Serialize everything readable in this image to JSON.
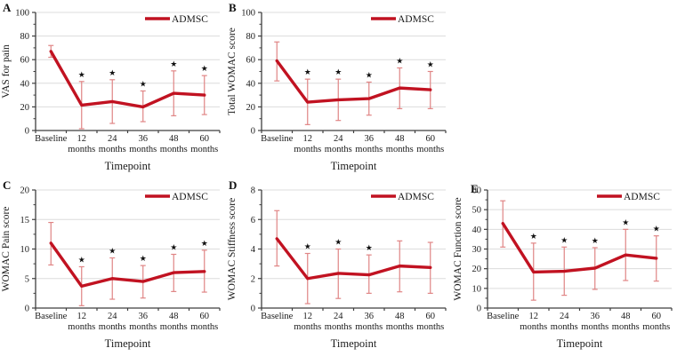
{
  "figure": {
    "legend_label": "ADMSC",
    "xlabel": "Timepoint",
    "significance_marker": "★",
    "categories": [
      "Baseline",
      "12 months",
      "24 months",
      "36 months",
      "48 months",
      "60 months"
    ],
    "colors": {
      "line": "#c11221",
      "error_bar": "#e08585",
      "gridline": "#dcdcdc",
      "axis": "#3f3f3f",
      "text": "#1a1a1a",
      "asterisk": "#111111"
    }
  },
  "chart_data": [
    {
      "panel": "A",
      "type": "line",
      "ylabel": "VAS for pain",
      "xlabel": "Timepoint",
      "categories": [
        "Baseline",
        "12 months",
        "24 months",
        "36 months",
        "48 months",
        "60 months"
      ],
      "ylim": [
        0,
        100
      ],
      "yticks": [
        0,
        20,
        40,
        60,
        80,
        100
      ],
      "series": [
        {
          "name": "ADMSC",
          "values": [
            67,
            21.5,
            24.5,
            20,
            31.5,
            30
          ]
        }
      ],
      "error_low": [
        62,
        1.5,
        6,
        7.5,
        12.5,
        13.5
      ],
      "error_high": [
        72,
        41.5,
        43,
        33.5,
        50.5,
        46.5
      ],
      "significant": [
        false,
        true,
        true,
        true,
        true,
        true
      ],
      "legend_position": "top-right",
      "grid": "horizontal"
    },
    {
      "panel": "B",
      "type": "line",
      "ylabel": "Total WOMAC score",
      "xlabel": "Timepoint",
      "categories": [
        "Baseline",
        "12 months",
        "24 months",
        "36 months",
        "48 months",
        "60 months"
      ],
      "ylim": [
        0,
        100
      ],
      "yticks": [
        0,
        20,
        40,
        60,
        80,
        100
      ],
      "series": [
        {
          "name": "ADMSC",
          "values": [
            59,
            24,
            26,
            27,
            36,
            34.5
          ]
        }
      ],
      "error_low": [
        42,
        5,
        8.5,
        13,
        18.5,
        18.5
      ],
      "error_high": [
        75,
        43.5,
        43.5,
        41,
        53,
        50
      ],
      "significant": [
        false,
        true,
        true,
        true,
        true,
        true
      ],
      "legend_position": "top-right",
      "grid": "horizontal"
    },
    {
      "panel": "C",
      "type": "line",
      "ylabel": "WOMAC Pain score",
      "xlabel": "Timepoint",
      "categories": [
        "Baseline",
        "12 months",
        "24 months",
        "36 months",
        "48 months",
        "60 months"
      ],
      "ylim": [
        0,
        20
      ],
      "yticks": [
        0,
        5,
        10,
        15,
        20
      ],
      "series": [
        {
          "name": "ADMSC",
          "values": [
            11,
            3.7,
            5,
            4.5,
            6,
            6.2
          ]
        }
      ],
      "error_low": [
        7.3,
        0.4,
        1.5,
        1.7,
        2.8,
        2.7
      ],
      "error_high": [
        14.5,
        7,
        8.5,
        7.2,
        9.1,
        9.8
      ],
      "significant": [
        false,
        true,
        true,
        true,
        true,
        true
      ],
      "legend_position": "top-right",
      "grid": "horizontal"
    },
    {
      "panel": "D",
      "type": "line",
      "ylabel": "WOMAC Stiffness score",
      "xlabel": "Timepoint",
      "categories": [
        "Baseline",
        "12 months",
        "24 months",
        "36 months",
        "48 months",
        "60 months"
      ],
      "ylim": [
        0,
        8
      ],
      "yticks": [
        0,
        2,
        4,
        6,
        8
      ],
      "series": [
        {
          "name": "ADMSC",
          "values": [
            4.7,
            2,
            2.35,
            2.25,
            2.85,
            2.75
          ]
        }
      ],
      "error_low": [
        2.85,
        0.3,
        0.65,
        1,
        1.1,
        1
      ],
      "error_high": [
        6.6,
        3.7,
        4,
        3.6,
        4.55,
        4.45
      ],
      "significant": [
        false,
        true,
        true,
        true,
        false,
        false
      ],
      "legend_position": "top-right",
      "grid": "horizontal"
    },
    {
      "panel": "E",
      "type": "line",
      "ylabel": "WOMAC Function score",
      "xlabel": "Timepoint",
      "categories": [
        "Baseline",
        "12 months",
        "24 months",
        "36 months",
        "48 months",
        "60 months"
      ],
      "ylim": [
        0,
        60
      ],
      "yticks": [
        0,
        10,
        20,
        30,
        40,
        50,
        60
      ],
      "series": [
        {
          "name": "ADMSC",
          "values": [
            43,
            18.3,
            18.7,
            20.3,
            27,
            25.3
          ]
        }
      ],
      "error_low": [
        31,
        4,
        6.5,
        9.5,
        14,
        13.7
      ],
      "error_high": [
        54.5,
        33,
        31,
        30.7,
        40,
        36.7
      ],
      "significant": [
        false,
        true,
        true,
        true,
        true,
        true
      ],
      "legend_position": "top-right",
      "grid": "horizontal"
    }
  ]
}
